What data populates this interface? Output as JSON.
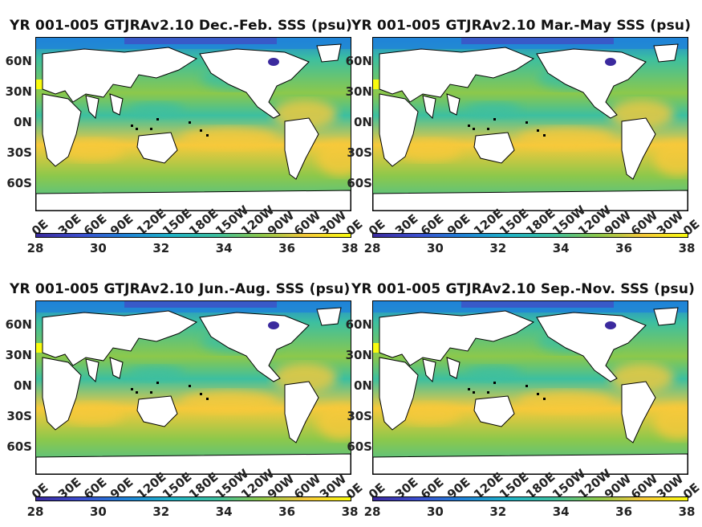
{
  "panels": [
    {
      "title": "YR 001-005 GTJRAv2.10 Dec.-Feb. SSS (psu)"
    },
    {
      "title": "YR 001-005 GTJRAv2.10 Mar.-May SSS (psu)"
    },
    {
      "title": "YR 001-005 GTJRAv2.10 Jun.-Aug. SSS (psu)"
    },
    {
      "title": "YR 001-005 GTJRAv2.10 Sep.-Nov. SSS (psu)"
    }
  ],
  "lat_ticks": [
    "60N",
    "30N",
    "0N",
    "30S",
    "60S"
  ],
  "lon_ticks": [
    "0E",
    "30E",
    "60E",
    "90E",
    "120E",
    "150E",
    "180E",
    "150W",
    "120W",
    "90W",
    "60W",
    "30W",
    "0E"
  ],
  "colorbar_ticks": [
    "28",
    "30",
    "32",
    "34",
    "36",
    "38"
  ],
  "colors": {
    "low": "#3b2a9e",
    "mid_low": "#1f83d8",
    "mid": "#3cbfa0",
    "mid_high": "#8cc84b",
    "high": "#f7c93b",
    "top": "#f9fb0e",
    "land": "#ffffff"
  }
}
